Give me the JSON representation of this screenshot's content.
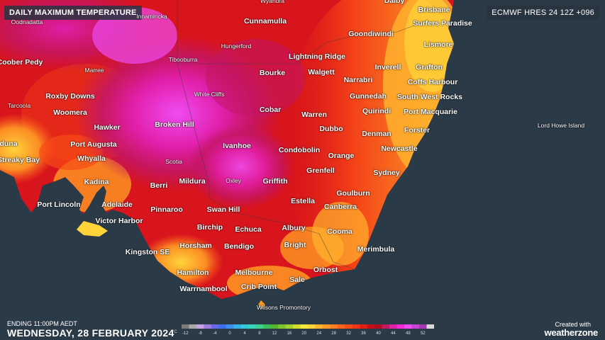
{
  "header": {
    "title": "DAILY MAXIMUM TEMPERATURE",
    "model": "ECMWF HRES 24 12Z +096"
  },
  "footer": {
    "ending": "ENDING 11:00PM AEDT",
    "date": "WEDNESDAY, 28 FEBRUARY 2024",
    "credit_top": "Created with",
    "credit_brand": "weatherzone"
  },
  "legend": {
    "unit": "°C",
    "stops": [
      {
        "label": "-12",
        "color": "#7a7a7a"
      },
      {
        "label": "",
        "color": "#a9a9a9"
      },
      {
        "label": "-8",
        "color": "#c7a3e6"
      },
      {
        "label": "",
        "color": "#9c7de0"
      },
      {
        "label": "-4",
        "color": "#6a6ae6"
      },
      {
        "label": "",
        "color": "#3d6ef0"
      },
      {
        "label": "0",
        "color": "#3a8fe8"
      },
      {
        "label": "",
        "color": "#37b0e6"
      },
      {
        "label": "4",
        "color": "#35c8d8"
      },
      {
        "label": "",
        "color": "#33d6b5"
      },
      {
        "label": "8",
        "color": "#3ccf8e"
      },
      {
        "label": "",
        "color": "#3cc05a"
      },
      {
        "label": "12",
        "color": "#53b62c"
      },
      {
        "label": "",
        "color": "#7bc42a"
      },
      {
        "label": "16",
        "color": "#a6d12b"
      },
      {
        "label": "",
        "color": "#d4dd2e"
      },
      {
        "label": "20",
        "color": "#f4e93a"
      },
      {
        "label": "",
        "color": "#ffd43b"
      },
      {
        "label": "24",
        "color": "#ffb52e"
      },
      {
        "label": "",
        "color": "#ff9a24"
      },
      {
        "label": "28",
        "color": "#ff7f1e"
      },
      {
        "label": "",
        "color": "#ff6419"
      },
      {
        "label": "32",
        "color": "#f84a17"
      },
      {
        "label": "",
        "color": "#ef3415"
      },
      {
        "label": "36",
        "color": "#df1d14"
      },
      {
        "label": "",
        "color": "#c60f18"
      },
      {
        "label": "40",
        "color": "#b10c22"
      },
      {
        "label": "",
        "color": "#c31666"
      },
      {
        "label": "44",
        "color": "#e11ea8"
      },
      {
        "label": "",
        "color": "#f62cdc"
      },
      {
        "label": "48",
        "color": "#f04bf2"
      },
      {
        "label": "",
        "color": "#c940d4"
      },
      {
        "label": "52",
        "color": "#a337b2"
      },
      {
        "label": "",
        "color": "#d9d9d9"
      }
    ]
  },
  "places": [
    {
      "name": "Wyandra",
      "small": true
    },
    {
      "name": "Dalby",
      "small": false
    },
    {
      "name": "Brisbane",
      "small": false
    },
    {
      "name": "Innamincka",
      "small": true
    },
    {
      "name": "Oodnadatta",
      "small": true
    },
    {
      "name": "Cunnamulla",
      "small": false
    },
    {
      "name": "Surfers Paradise",
      "small": false
    },
    {
      "name": "Goondiwindi",
      "small": false
    },
    {
      "name": "Hungerford",
      "small": true
    },
    {
      "name": "Lismore",
      "small": false
    },
    {
      "name": "Tibooburra",
      "small": true
    },
    {
      "name": "Lightning Ridge",
      "small": false
    },
    {
      "name": "Coober Pedy",
      "small": false
    },
    {
      "name": "Inverell",
      "small": false
    },
    {
      "name": "Grafton",
      "small": false
    },
    {
      "name": "Marree",
      "small": true
    },
    {
      "name": "Bourke",
      "small": false
    },
    {
      "name": "Walgett",
      "small": false
    },
    {
      "name": "Narrabri",
      "small": false
    },
    {
      "name": "Coffs Harbour",
      "small": false
    },
    {
      "name": "Roxby Downs",
      "small": false
    },
    {
      "name": "White Cliffs",
      "small": true
    },
    {
      "name": "Gunnedah",
      "small": false
    },
    {
      "name": "South West Rocks",
      "small": false
    },
    {
      "name": "Tarcoola",
      "small": true
    },
    {
      "name": "Cobar",
      "small": false
    },
    {
      "name": "Quirindi",
      "small": false
    },
    {
      "name": "Port Macquarie",
      "small": false
    },
    {
      "name": "Woomera",
      "small": false
    },
    {
      "name": "Warren",
      "small": false
    },
    {
      "name": "Broken Hill",
      "small": false
    },
    {
      "name": "Hawker",
      "small": false
    },
    {
      "name": "Dubbo",
      "small": false
    },
    {
      "name": "Forster",
      "small": false
    },
    {
      "name": "Denman",
      "small": false
    },
    {
      "name": "Lord Howe Island",
      "small": true
    },
    {
      "name": "duna",
      "small": false
    },
    {
      "name": "Port Augusta",
      "small": false
    },
    {
      "name": "Ivanhoe",
      "small": false
    },
    {
      "name": "Condobolin",
      "small": false
    },
    {
      "name": "Newcastle",
      "small": false
    },
    {
      "name": "Streaky Bay",
      "small": false
    },
    {
      "name": "Whyalla",
      "small": false
    },
    {
      "name": "Scotia",
      "small": true
    },
    {
      "name": "Orange",
      "small": false
    },
    {
      "name": "Grenfell",
      "small": false
    },
    {
      "name": "Sydney",
      "small": false
    },
    {
      "name": "Kadina",
      "small": false
    },
    {
      "name": "Mildura",
      "small": false
    },
    {
      "name": "Oxley",
      "small": true
    },
    {
      "name": "Griffith",
      "small": false
    },
    {
      "name": "Berri",
      "small": false
    },
    {
      "name": "Goulburn",
      "small": false
    },
    {
      "name": "Estella",
      "small": false
    },
    {
      "name": "Port Lincoln",
      "small": false
    },
    {
      "name": "Adelaide",
      "small": false
    },
    {
      "name": "Canberra",
      "small": false
    },
    {
      "name": "Pinnaroo",
      "small": false
    },
    {
      "name": "Swan Hill",
      "small": false
    },
    {
      "name": "Victor Harbor",
      "small": false
    },
    {
      "name": "Birchip",
      "small": false
    },
    {
      "name": "Echuca",
      "small": false
    },
    {
      "name": "Albury",
      "small": false
    },
    {
      "name": "Cooma",
      "small": false
    },
    {
      "name": "Kingston SE",
      "small": false
    },
    {
      "name": "Horsham",
      "small": false
    },
    {
      "name": "Bendigo",
      "small": false
    },
    {
      "name": "Bright",
      "small": false
    },
    {
      "name": "Merimbula",
      "small": false
    },
    {
      "name": "Orbost",
      "small": false
    },
    {
      "name": "Hamilton",
      "small": false
    },
    {
      "name": "Melbourne",
      "small": false
    },
    {
      "name": "Sale",
      "small": false
    },
    {
      "name": "Warrnambool",
      "small": false
    },
    {
      "name": "Crib Point",
      "small": false
    },
    {
      "name": "Wilsons Promontory",
      "small": true
    }
  ]
}
